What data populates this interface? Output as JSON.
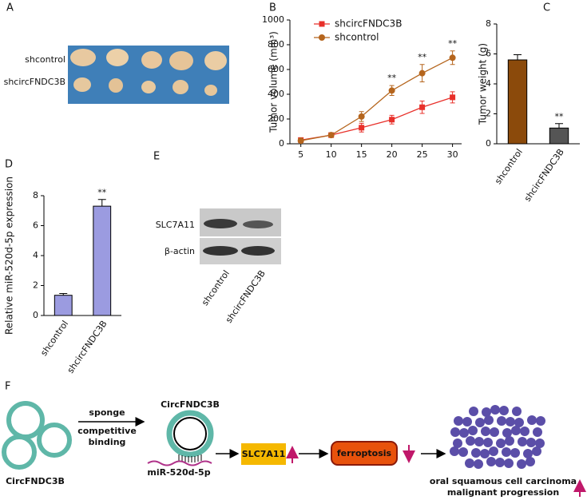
{
  "panel_labels": [
    "A",
    "B",
    "C",
    "D",
    "E",
    "F"
  ],
  "panel_a": {
    "rows": [
      "shcontrol",
      "shcircFNDC3B"
    ]
  },
  "panel_e": {
    "bands": [
      "SLC7A11",
      "β-actin"
    ],
    "lanes": [
      "shcontrol",
      "shcircFNDC3B"
    ]
  },
  "panel_f": {
    "circ_left": "CircFNDC3B",
    "arrow_top": "sponge",
    "arrow_bottom": [
      "competitive",
      "binding"
    ],
    "circ_center": "CircFNDC3B",
    "mirna": "miR-520d-5p",
    "target": "SLC7A11",
    "process": "ferroptosis",
    "outcome": [
      "oral squamous cell carcinoma",
      "malignant  progression"
    ]
  },
  "chart_data": [
    {
      "type": "line",
      "ylabel": "Tumor volume (mm³)",
      "x": [
        5,
        10,
        15,
        20,
        25,
        30
      ],
      "xlim": [
        3.2,
        31.5
      ],
      "xticks": [
        5,
        10,
        15,
        20,
        25,
        30
      ],
      "ylim": [
        0,
        1000
      ],
      "yticks": [
        0,
        200,
        400,
        600,
        800,
        1000
      ],
      "legend": "top-left",
      "series": [
        {
          "name": "shcircFNDC3B",
          "color": "#e8302a",
          "marker": "square",
          "values": [
            30,
            70,
            130,
            195,
            295,
            375
          ],
          "errors": [
            15,
            10,
            35,
            35,
            50,
            45
          ]
        },
        {
          "name": "shcontrol",
          "color": "#b5651d",
          "marker": "circle",
          "values": [
            25,
            70,
            220,
            430,
            570,
            695
          ],
          "errors": [
            10,
            10,
            40,
            40,
            70,
            55
          ]
        }
      ],
      "annotations": [
        {
          "text": "**",
          "x": 20
        },
        {
          "text": "**",
          "x": 25
        },
        {
          "text": "**",
          "x": 30
        }
      ]
    },
    {
      "type": "bar",
      "ylabel": "Tumor weight (g)",
      "categories": [
        "shcontrol",
        "shcircFNDC3B"
      ],
      "values": [
        5.6,
        1.05
      ],
      "errors": [
        0.35,
        0.3
      ],
      "colors": [
        "#8b4a0b",
        "#555555"
      ],
      "ylim": [
        0,
        8
      ],
      "yticks": [
        0,
        2,
        4,
        6,
        8
      ],
      "annotations": [
        {
          "text": "**",
          "category": "shcircFNDC3B"
        }
      ]
    },
    {
      "type": "bar",
      "ylabel": "Relative miR-520d-5p expression",
      "categories": [
        "shcontrol",
        "shcircFNDC3B"
      ],
      "values": [
        1.35,
        7.3
      ],
      "errors": [
        0.12,
        0.45
      ],
      "colors": [
        "#9b9be0",
        "#9b9be0"
      ],
      "ylim": [
        0,
        8
      ],
      "yticks": [
        0,
        2,
        4,
        6,
        8
      ],
      "annotations": [
        {
          "text": "**",
          "category": "shcircFNDC3B"
        }
      ]
    }
  ]
}
